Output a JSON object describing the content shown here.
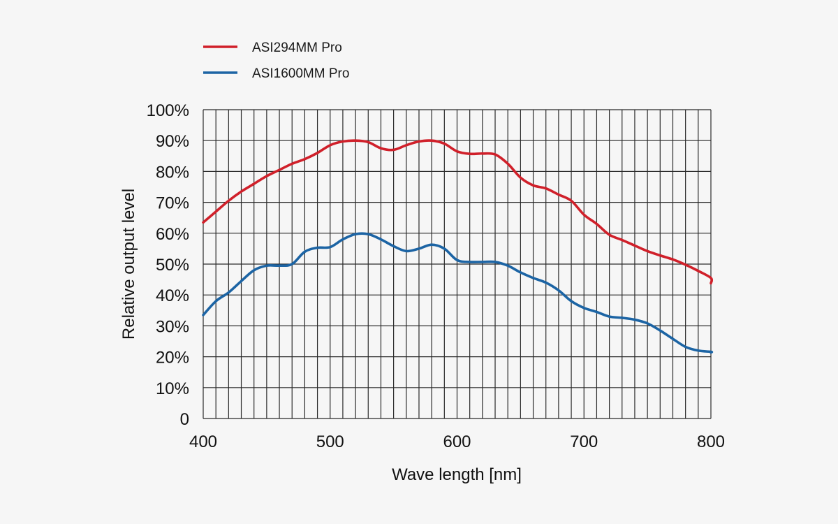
{
  "chart_data": {
    "type": "line",
    "title": "",
    "xlabel": "Wave length [nm]",
    "ylabel": "Relative output level",
    "xlim": [
      400,
      800
    ],
    "ylim": [
      0,
      100
    ],
    "x_ticks": [
      400,
      500,
      600,
      700,
      800
    ],
    "x_tick_labels": [
      "400",
      "500",
      "600",
      "700",
      "800"
    ],
    "y_ticks": [
      0,
      10,
      20,
      30,
      40,
      50,
      60,
      70,
      80,
      90,
      100
    ],
    "y_tick_labels": [
      "0",
      "10%",
      "20%",
      "30%",
      "40%",
      "50%",
      "60%",
      "70%",
      "80%",
      "90%",
      "100%"
    ],
    "grid": {
      "on": true,
      "x_step": 10,
      "y_step": 10
    },
    "legend": {
      "placement": "top-left",
      "entries": [
        "ASI294MM Pro",
        "ASI1600MM Pro"
      ]
    },
    "series": [
      {
        "name": "ASI294MM Pro",
        "color": "#d0202a",
        "x": [
          400,
          410,
          420,
          430,
          440,
          450,
          460,
          470,
          480,
          490,
          500,
          510,
          520,
          530,
          540,
          550,
          560,
          570,
          580,
          590,
          600,
          610,
          620,
          630,
          640,
          650,
          660,
          670,
          680,
          690,
          700,
          710,
          720,
          730,
          740,
          750,
          760,
          770,
          780,
          790,
          800,
          805
        ],
        "values": [
          63.5,
          67,
          70.5,
          73.5,
          76,
          78.5,
          80.5,
          82.5,
          84,
          86,
          88.5,
          89.7,
          90,
          89.5,
          87.5,
          87,
          88.5,
          89.7,
          90,
          89,
          86.5,
          85.7,
          85.8,
          85.5,
          82.5,
          78,
          75.5,
          74.5,
          72.5,
          70.5,
          66,
          63,
          59.5,
          57.8,
          56,
          54.2,
          52.8,
          51.5,
          49.8,
          47.8,
          45.5,
          43.8
        ]
      },
      {
        "name": "ASI1600MM Pro",
        "color": "#1c64a4",
        "x": [
          400,
          410,
          420,
          430,
          440,
          450,
          460,
          470,
          480,
          490,
          500,
          510,
          520,
          530,
          540,
          550,
          560,
          570,
          580,
          590,
          600,
          610,
          620,
          630,
          640,
          650,
          660,
          670,
          680,
          690,
          700,
          710,
          720,
          730,
          740,
          750,
          760,
          770,
          780,
          790,
          800,
          805
        ],
        "values": [
          33.5,
          38,
          40.8,
          44.5,
          48,
          49.5,
          49.5,
          50,
          54,
          55.3,
          55.5,
          58,
          59.7,
          59.7,
          58,
          55.8,
          54.2,
          55,
          56.3,
          55,
          51.3,
          50.7,
          50.7,
          50.7,
          49.5,
          47.3,
          45.5,
          44,
          41.5,
          38,
          35.8,
          34.5,
          33,
          32.6,
          32,
          30.8,
          28.5,
          25.8,
          23.2,
          22,
          21.6,
          21.4
        ]
      }
    ]
  }
}
